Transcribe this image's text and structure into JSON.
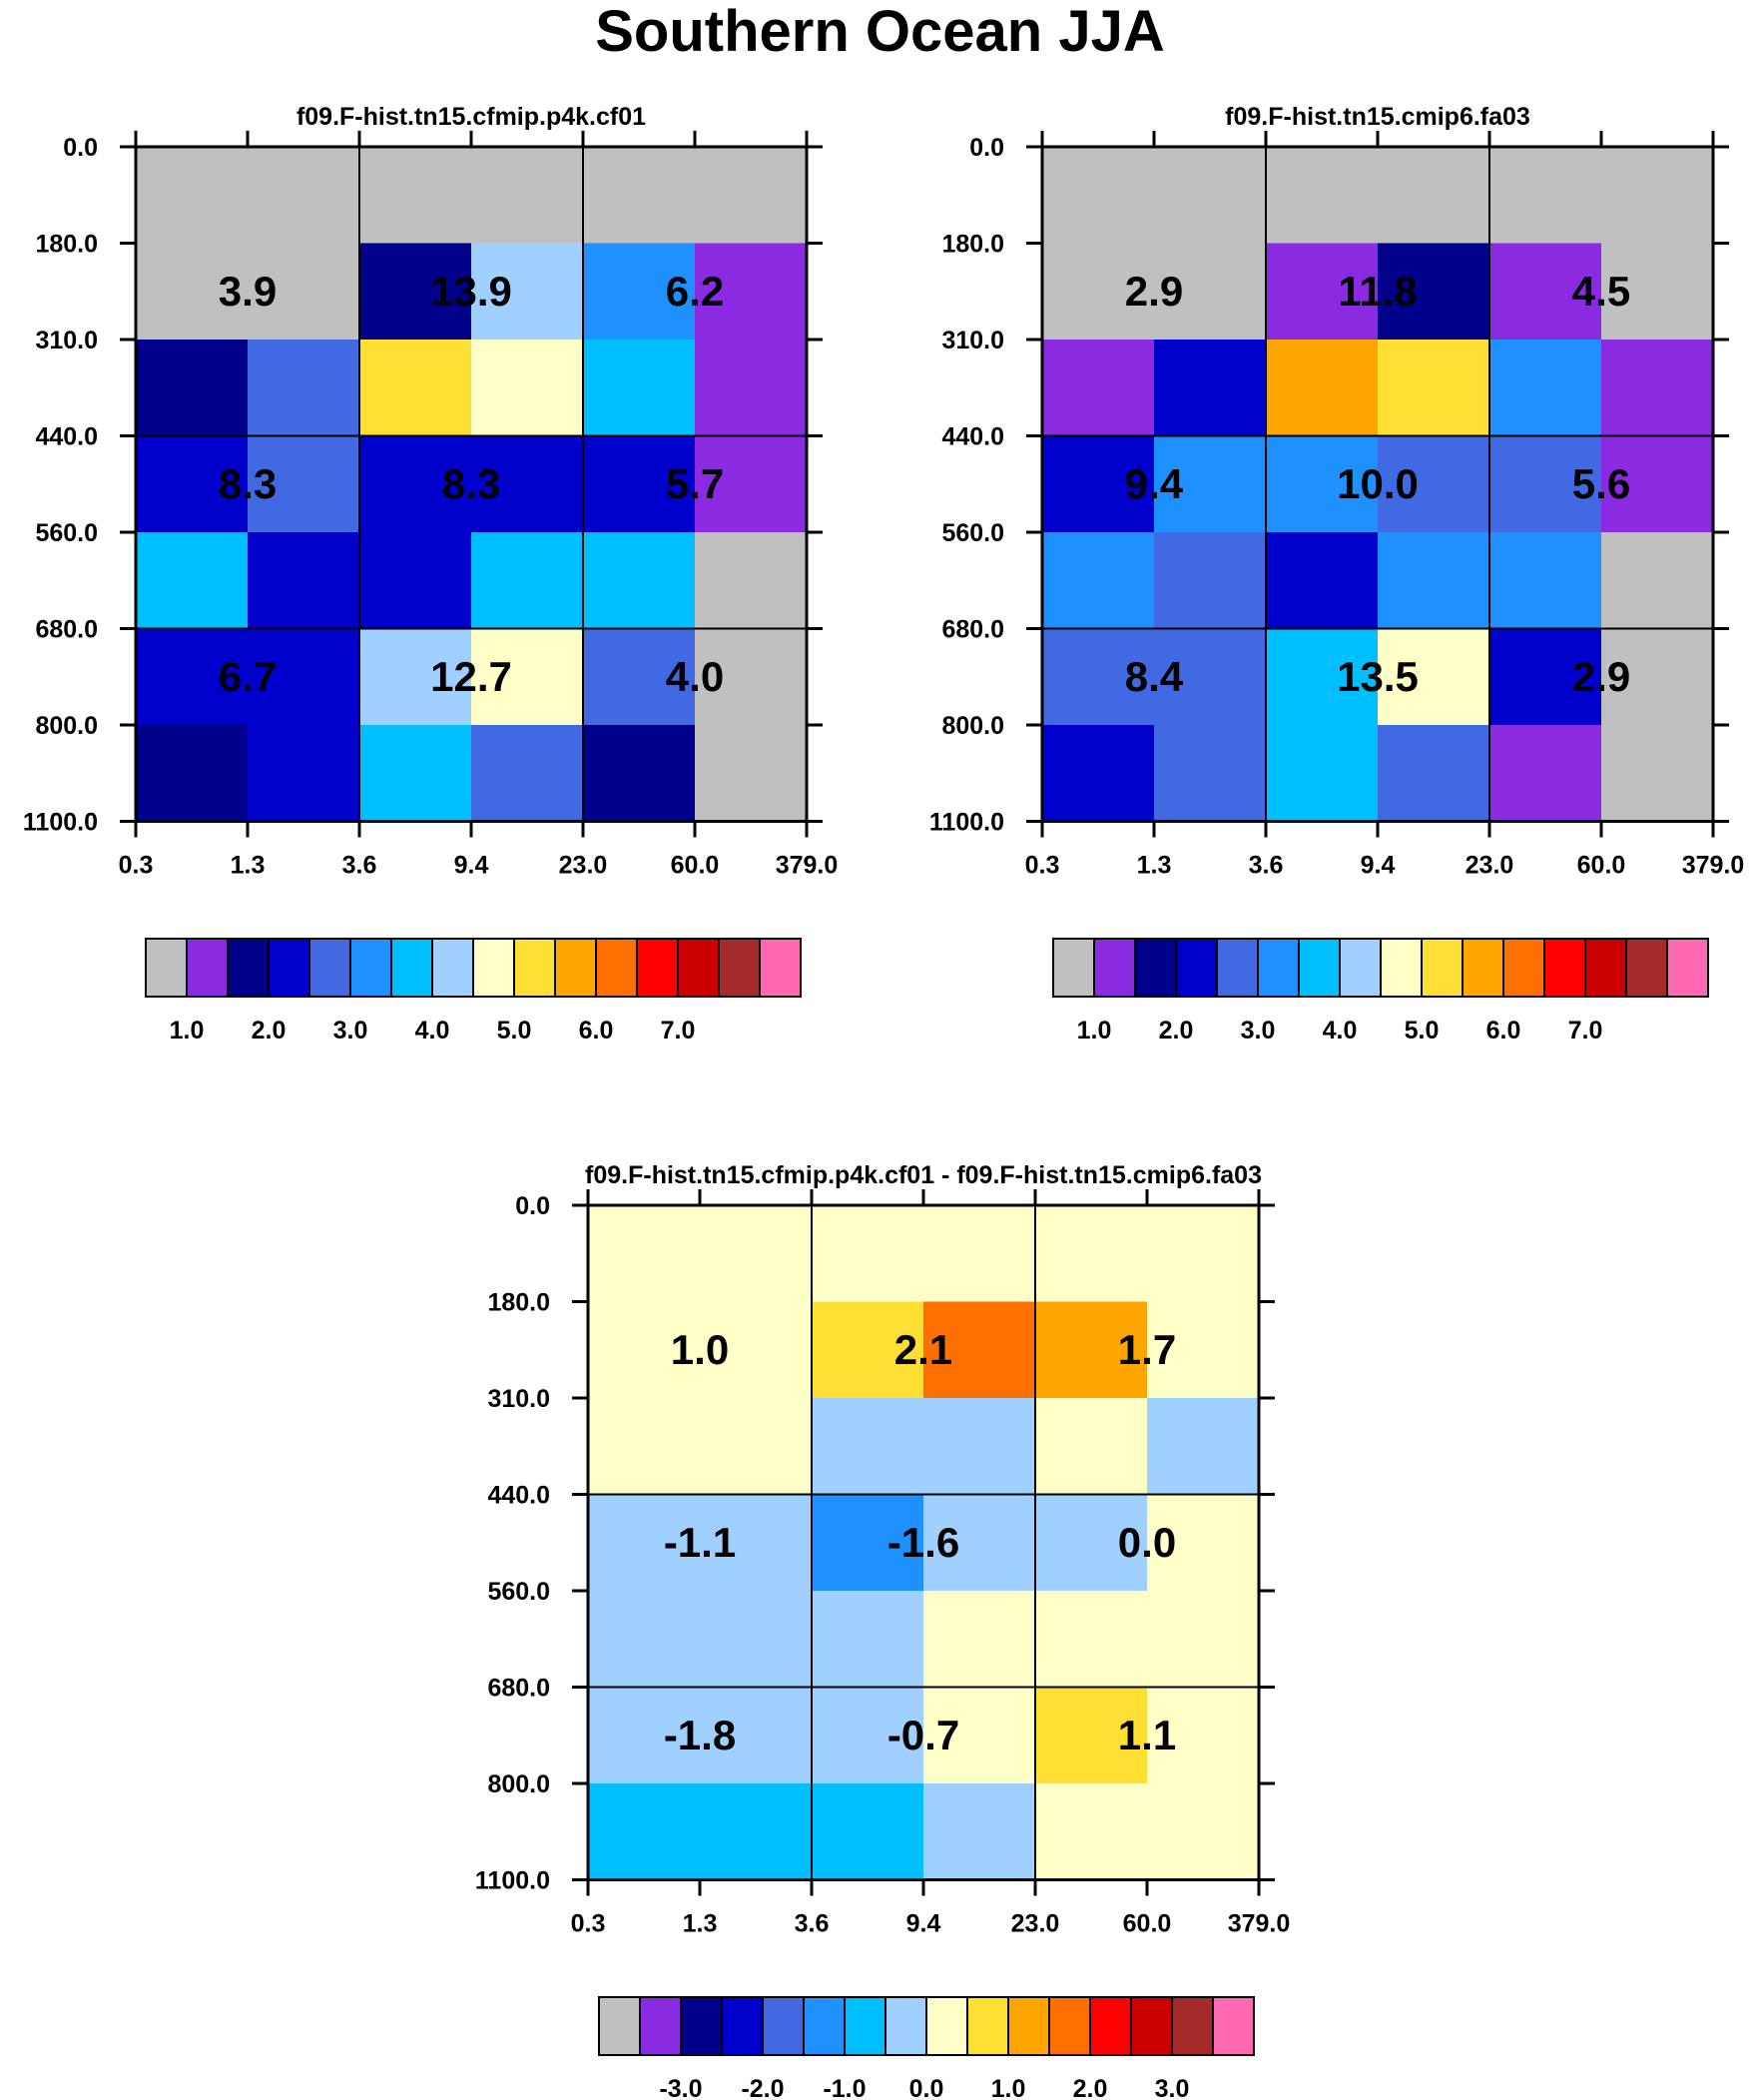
{
  "title": "Southern Ocean JJA",
  "chart_data": [
    {
      "type": "heatmap",
      "title": "f09.F-hist.tn15.cfmip.p4k.cf01",
      "x_ticks": [
        "0.3",
        "1.3",
        "3.6",
        "9.4",
        "23.0",
        "60.0",
        "379.0"
      ],
      "y_ticks": [
        "0.0",
        "180.0",
        "310.0",
        "440.0",
        "560.0",
        "680.0",
        "800.0",
        "1100.0"
      ],
      "cell_color_index": [
        [
          0,
          0,
          0,
          0,
          0,
          0
        ],
        [
          0,
          0,
          2,
          7,
          5,
          1
        ],
        [
          2,
          4,
          9,
          8,
          6,
          1
        ],
        [
          3,
          4,
          3,
          3,
          3,
          1
        ],
        [
          6,
          3,
          3,
          6,
          6,
          0
        ],
        [
          3,
          3,
          7,
          8,
          4,
          0
        ],
        [
          2,
          3,
          6,
          4,
          2,
          0
        ]
      ],
      "block_labels": [
        [
          "3.9",
          "13.9",
          "6.2"
        ],
        [
          "8.3",
          "8.3",
          "5.7"
        ],
        [
          "6.7",
          "12.7",
          "4.0"
        ]
      ],
      "colorbar": {
        "labels": [
          "1.0",
          "2.0",
          "3.0",
          "4.0",
          "5.0",
          "6.0",
          "7.0"
        ]
      }
    },
    {
      "type": "heatmap",
      "title": "f09.F-hist.tn15.cmip6.fa03",
      "x_ticks": [
        "0.3",
        "1.3",
        "3.6",
        "9.4",
        "23.0",
        "60.0",
        "379.0"
      ],
      "y_ticks": [
        "0.0",
        "180.0",
        "310.0",
        "440.0",
        "560.0",
        "680.0",
        "800.0",
        "1100.0"
      ],
      "cell_color_index": [
        [
          0,
          0,
          0,
          0,
          0,
          0
        ],
        [
          0,
          0,
          1,
          2,
          1,
          0
        ],
        [
          1,
          3,
          10,
          9,
          5,
          1
        ],
        [
          3,
          5,
          5,
          4,
          4,
          1
        ],
        [
          5,
          4,
          3,
          5,
          5,
          0
        ],
        [
          4,
          4,
          6,
          8,
          3,
          0
        ],
        [
          3,
          4,
          6,
          4,
          1,
          0
        ]
      ],
      "block_labels": [
        [
          "2.9",
          "11.8",
          "4.5"
        ],
        [
          "9.4",
          "10.0",
          "5.6"
        ],
        [
          "8.4",
          "13.5",
          "2.9"
        ]
      ],
      "colorbar": {
        "labels": [
          "1.0",
          "2.0",
          "3.0",
          "4.0",
          "5.0",
          "6.0",
          "7.0"
        ]
      }
    },
    {
      "type": "heatmap",
      "title": "f09.F-hist.tn15.cfmip.p4k.cf01 - f09.F-hist.tn15.cmip6.fa03",
      "x_ticks": [
        "0.3",
        "1.3",
        "3.6",
        "9.4",
        "23.0",
        "60.0",
        "379.0"
      ],
      "y_ticks": [
        "0.0",
        "180.0",
        "310.0",
        "440.0",
        "560.0",
        "680.0",
        "800.0",
        "1100.0"
      ],
      "cell_color_index": [
        [
          8,
          8,
          8,
          8,
          8,
          8
        ],
        [
          8,
          8,
          9,
          11,
          10,
          8
        ],
        [
          8,
          8,
          7,
          7,
          8,
          7
        ],
        [
          7,
          7,
          5,
          7,
          7,
          8
        ],
        [
          7,
          7,
          7,
          8,
          8,
          8
        ],
        [
          7,
          7,
          7,
          8,
          9,
          8
        ],
        [
          6,
          6,
          6,
          7,
          8,
          8
        ]
      ],
      "block_labels": [
        [
          "1.0",
          "2.1",
          "1.7"
        ],
        [
          "-1.1",
          "-1.6",
          "0.0"
        ],
        [
          "-1.8",
          "-0.7",
          "1.1"
        ]
      ],
      "colorbar": {
        "labels": [
          "-3.0",
          "-2.0",
          "-1.0",
          "0.0",
          "1.0",
          "2.0",
          "3.0"
        ]
      }
    }
  ],
  "palette": [
    "#c0c0c0",
    "#8a2be2",
    "#00008b",
    "#0000cd",
    "#4169e1",
    "#1e90ff",
    "#00bfff",
    "#a0d0ff",
    "#ffffc8",
    "#ffdf33",
    "#ffa500",
    "#ff7000",
    "#ff0000",
    "#cc0000",
    "#a52a2a",
    "#ff69b4"
  ]
}
